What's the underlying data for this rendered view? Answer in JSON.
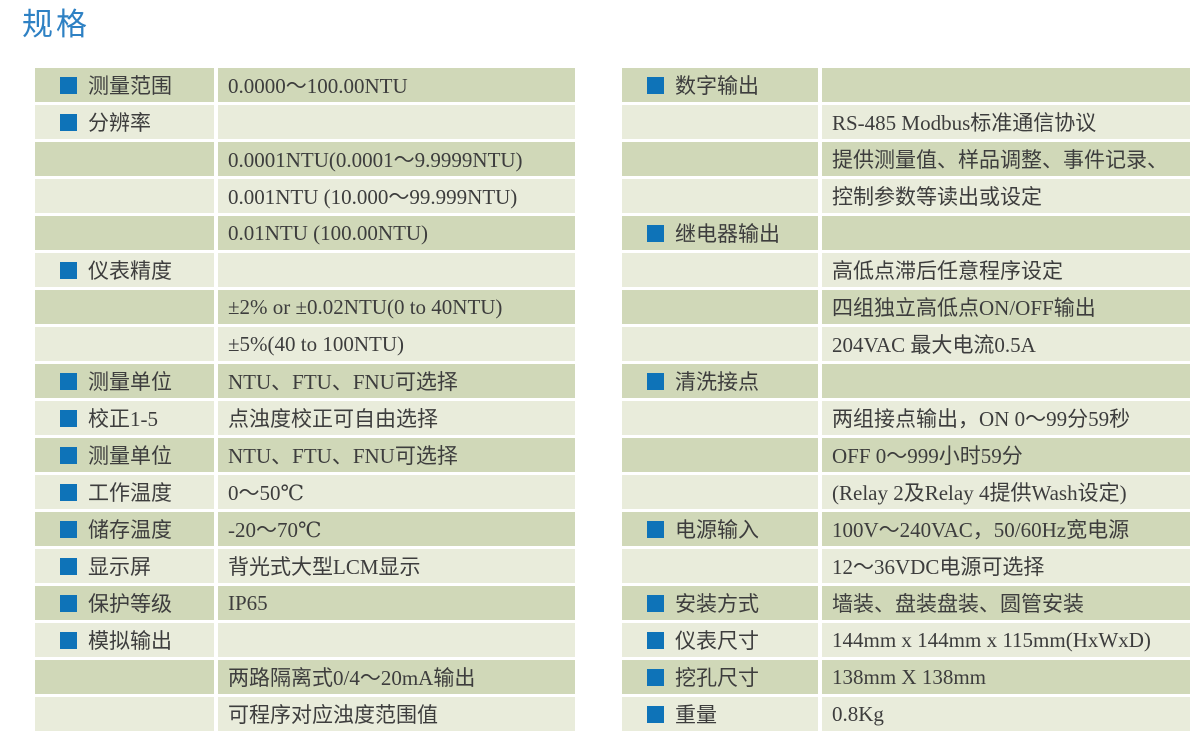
{
  "page": {
    "title": "规格"
  },
  "colors": {
    "title_blue": "#2e81c4",
    "bullet_blue": "#0e73b8",
    "row_dark": "#d0d8b8",
    "row_light": "#e9ecdb",
    "text": "#3d3d3d"
  },
  "icons": {
    "bullet": "blue-square-icon"
  },
  "tables": {
    "left": {
      "rows": [
        {
          "label": "测量范围",
          "value": "0.0000～100.00NTU"
        },
        {
          "label": "分辨率",
          "value": ""
        },
        {
          "label": "",
          "value": "0.0001NTU(0.0001～9.9999NTU)"
        },
        {
          "label": "",
          "value": "0.001NTU (10.000～99.999NTU)"
        },
        {
          "label": "",
          "value": "0.01NTU (100.00NTU)"
        },
        {
          "label": "仪表精度",
          "value": ""
        },
        {
          "label": "",
          "value": "±2% or ±0.02NTU(0 to 40NTU)"
        },
        {
          "label": "",
          "value": "±5%(40 to 100NTU)"
        },
        {
          "label": "测量单位",
          "value": "NTU、FTU、FNU可选择"
        },
        {
          "label": "校正1-5",
          "value": "点浊度校正可自由选择"
        },
        {
          "label": "测量单位",
          "value": "NTU、FTU、FNU可选择"
        },
        {
          "label": "工作温度",
          "value": "0～50℃"
        },
        {
          "label": "储存温度",
          "value": "-20～70℃"
        },
        {
          "label": "显示屏",
          "value": "背光式大型LCM显示"
        },
        {
          "label": "保护等级",
          "value": "IP65"
        },
        {
          "label": "模拟输出",
          "value": ""
        },
        {
          "label": "",
          "value": "两路隔离式0/4～20mA输出"
        },
        {
          "label": "",
          "value": "可程序对应浊度范围值"
        }
      ]
    },
    "right": {
      "rows": [
        {
          "label": "数字输出",
          "value": ""
        },
        {
          "label": "",
          "value": "RS-485 Modbus标准通信协议"
        },
        {
          "label": "",
          "value": "提供测量值、样品调整、事件记录、"
        },
        {
          "label": "",
          "value": "控制参数等读出或设定"
        },
        {
          "label": "继电器输出",
          "value": ""
        },
        {
          "label": "",
          "value": "高低点滞后任意程序设定"
        },
        {
          "label": "",
          "value": "四组独立高低点ON/OFF输出"
        },
        {
          "label": "",
          "value": "204VAC 最大电流0.5A"
        },
        {
          "label": "清洗接点",
          "value": ""
        },
        {
          "label": "",
          "value": "两组接点输出，ON 0～99分59秒"
        },
        {
          "label": "",
          "value": "OFF 0～999小时59分"
        },
        {
          "label": "",
          "value": "(Relay 2及Relay 4提供Wash设定)"
        },
        {
          "label": "电源输入",
          "value": "100V～240VAC，50/60Hz宽电源"
        },
        {
          "label": "",
          "value": "12～36VDC电源可选择"
        },
        {
          "label": "安装方式",
          "value": "墙装、盘装盘装、圆管安装"
        },
        {
          "label": "仪表尺寸",
          "value": "144mm x 144mm x 115mm(HxWxD)"
        },
        {
          "label": "挖孔尺寸",
          "value": "138mm X 138mm"
        },
        {
          "label": "重量",
          "value": "0.8Kg"
        }
      ]
    }
  }
}
